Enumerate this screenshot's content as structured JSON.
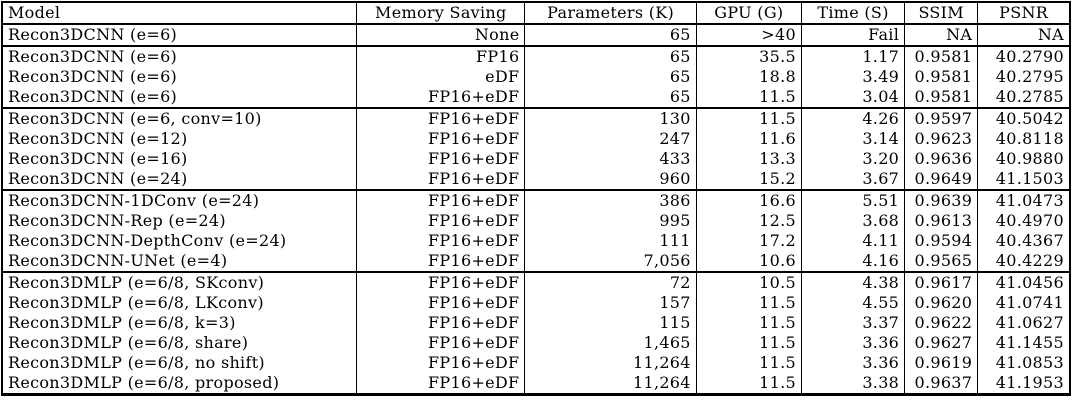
{
  "colors": {
    "background": "#ffffff",
    "text": "#000000",
    "border": "#000000"
  },
  "table": {
    "headers": [
      "Model",
      "Memory Saving",
      "Parameters (K)",
      "GPU (G)",
      "Time (S)",
      "SSIM",
      "PSNR"
    ],
    "groups": [
      {
        "rows": [
          [
            "Recon3DCNN (e=6)",
            "None",
            "65",
            ">40",
            "Fail",
            "NA",
            "NA"
          ]
        ]
      },
      {
        "rows": [
          [
            "Recon3DCNN (e=6)",
            "FP16",
            "65",
            "35.5",
            "1.17",
            "0.9581",
            "40.2790"
          ],
          [
            "Recon3DCNN (e=6)",
            "eDF",
            "65",
            "18.8",
            "3.49",
            "0.9581",
            "40.2795"
          ],
          [
            "Recon3DCNN (e=6)",
            "FP16+eDF",
            "65",
            "11.5",
            "3.04",
            "0.9581",
            "40.2785"
          ]
        ]
      },
      {
        "rows": [
          [
            "Recon3DCNN (e=6, conv=10)",
            "FP16+eDF",
            "130",
            "11.5",
            "4.26",
            "0.9597",
            "40.5042"
          ],
          [
            "Recon3DCNN (e=12)",
            "FP16+eDF",
            "247",
            "11.6",
            "3.14",
            "0.9623",
            "40.8118"
          ],
          [
            "Recon3DCNN (e=16)",
            "FP16+eDF",
            "433",
            "13.3",
            "3.20",
            "0.9636",
            "40.9880"
          ],
          [
            "Recon3DCNN (e=24)",
            "FP16+eDF",
            "960",
            "15.2",
            "3.67",
            "0.9649",
            "41.1503"
          ]
        ]
      },
      {
        "rows": [
          [
            "Recon3DCNN-1DConv (e=24)",
            "FP16+eDF",
            "386",
            "16.6",
            "5.51",
            "0.9639",
            "41.0473"
          ],
          [
            "Recon3DCNN-Rep (e=24)",
            "FP16+eDF",
            "995",
            "12.5",
            "3.68",
            "0.9613",
            "40.4970"
          ],
          [
            "Recon3DCNN-DepthConv (e=24)",
            "FP16+eDF",
            "111",
            "17.2",
            "4.11",
            "0.9594",
            "40.4367"
          ],
          [
            "Recon3DCNN-UNet (e=4)",
            "FP16+eDF",
            "7,056",
            "10.6",
            "4.16",
            "0.9565",
            "40.4229"
          ]
        ]
      },
      {
        "rows": [
          [
            "Recon3DMLP (e=6/8, SKconv)",
            "FP16+eDF",
            "72",
            "10.5",
            "4.38",
            "0.9617",
            "41.0456"
          ],
          [
            "Recon3DMLP (e=6/8, LKconv)",
            "FP16+eDF",
            "157",
            "11.5",
            "4.55",
            "0.9620",
            "41.0741"
          ],
          [
            "Recon3DMLP (e=6/8, k=3)",
            "FP16+eDF",
            "115",
            "11.5",
            "3.37",
            "0.9622",
            "41.0627"
          ],
          [
            "Recon3DMLP (e=6/8, share)",
            "FP16+eDF",
            "1,465",
            "11.5",
            "3.36",
            "0.9627",
            "41.1455"
          ],
          [
            "Recon3DMLP (e=6/8, no shift)",
            "FP16+eDF",
            "11,264",
            "11.5",
            "3.36",
            "0.9619",
            "41.0853"
          ],
          [
            "Recon3DMLP (e=6/8, proposed)",
            "FP16+eDF",
            "11,264",
            "11.5",
            "3.38",
            "0.9637",
            "41.1953"
          ]
        ]
      }
    ]
  }
}
